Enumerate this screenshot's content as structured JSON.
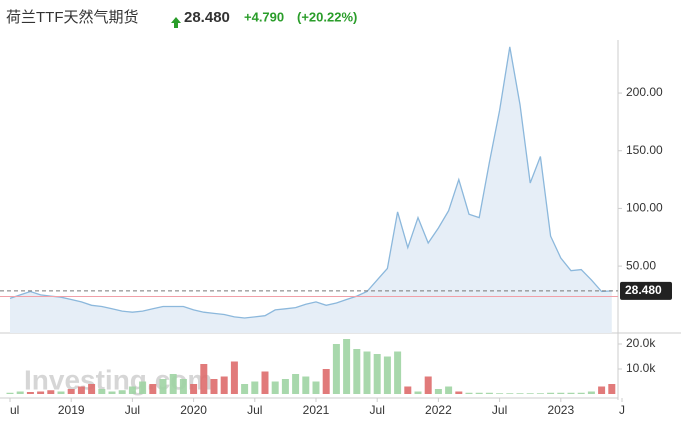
{
  "chart_data": {
    "type": "area",
    "title": "荷兰TTF天然气期货",
    "price": "28.480",
    "change": "+4.790",
    "change_pct": "(+20.22%)",
    "watermark": "Investing.com",
    "categories": [
      "ul",
      null,
      null,
      null,
      null,
      null,
      "2019",
      null,
      null,
      null,
      null,
      null,
      "Jul",
      null,
      null,
      null,
      null,
      null,
      "2020",
      null,
      null,
      null,
      null,
      null,
      "Jul",
      null,
      null,
      null,
      null,
      null,
      "2021",
      null,
      null,
      null,
      null,
      null,
      "Jul",
      null,
      null,
      null,
      null,
      null,
      "2022",
      null,
      null,
      null,
      null,
      null,
      "Jul",
      null,
      null,
      null,
      null,
      null,
      "2023",
      null,
      null,
      null,
      null,
      null,
      "J"
    ],
    "series": [
      {
        "color": "#8cb8dc",
        "values": [
          22,
          25,
          28,
          25,
          24,
          23,
          21,
          19,
          16,
          15,
          13,
          11,
          10,
          11,
          13,
          15,
          15,
          15,
          12,
          10,
          9,
          8,
          6,
          5,
          6,
          7,
          12,
          13,
          14,
          17,
          19,
          16,
          18,
          21,
          24,
          28,
          38,
          48,
          97,
          66,
          92,
          70,
          83,
          98,
          125,
          95,
          92,
          140,
          185,
          240,
          190,
          122,
          145,
          76,
          57,
          46,
          47,
          38,
          28,
          28.48,
          null
        ]
      }
    ],
    "last_label": {
      "value": 28.48,
      "label": "28.480"
    },
    "reference_line": 23.69,
    "ylim": [
      -8,
      246
    ],
    "yticks": [
      {
        "value": 50,
        "label": "50.00"
      },
      {
        "value": 100,
        "label": "100.00"
      },
      {
        "value": 150,
        "label": "150.00"
      },
      {
        "value": 200,
        "label": "200.00"
      }
    ],
    "volume": {
      "values": [
        500,
        1000,
        800,
        1000,
        1500,
        1000,
        2000,
        3000,
        4000,
        2000,
        1000,
        1500,
        3000,
        5000,
        4000,
        6000,
        8000,
        6000,
        4000,
        12000,
        6000,
        7000,
        13000,
        4000,
        5000,
        9000,
        5000,
        6000,
        8000,
        7000,
        5000,
        10000,
        20000,
        22000,
        18000,
        17000,
        16000,
        15000,
        17000,
        3000,
        1000,
        7000,
        2000,
        3000,
        1000,
        500,
        500,
        500,
        300,
        300,
        300,
        300,
        300,
        500,
        500,
        500,
        500,
        1000,
        3000,
        4000,
        null
      ],
      "colors": [
        "#9fd4a3",
        "#9fd4a3",
        "#de6b6b",
        "#de6b6b",
        "#de6b6b",
        "#9fd4a3",
        "#de6b6b",
        "#de6b6b",
        "#de6b6b",
        "#9fd4a3",
        "#9fd4a3",
        "#9fd4a3",
        "#9fd4a3",
        "#9fd4a3",
        "#de6b6b",
        "#9fd4a3",
        "#9fd4a3",
        "#9fd4a3",
        "#de6b6b",
        "#de6b6b",
        "#de6b6b",
        "#de6b6b",
        "#de6b6b",
        "#9fd4a3",
        "#9fd4a3",
        "#de6b6b",
        "#9fd4a3",
        "#9fd4a3",
        "#9fd4a3",
        "#9fd4a3",
        "#9fd4a3",
        "#de6b6b",
        "#9fd4a3",
        "#9fd4a3",
        "#9fd4a3",
        "#9fd4a3",
        "#9fd4a3",
        "#9fd4a3",
        "#9fd4a3",
        "#de6b6b",
        "#9fd4a3",
        "#de6b6b",
        "#9fd4a3",
        "#9fd4a3",
        "#de6b6b",
        "#9fd4a3",
        "#9fd4a3",
        "#9fd4a3",
        "#9fd4a3",
        "#9fd4a3",
        "#9fd4a3",
        "#9fd4a3",
        "#9fd4a3",
        "#9fd4a3",
        "#9fd4a3",
        "#9fd4a3",
        "#9fd4a3",
        "#9fd4a3",
        "#de6b6b",
        "#de6b6b",
        null
      ],
      "ylim": [
        0,
        24400
      ],
      "yticks": [
        {
          "value": 10000,
          "label": "10.0k"
        },
        {
          "value": 20000,
          "label": "20.0k"
        }
      ]
    }
  }
}
